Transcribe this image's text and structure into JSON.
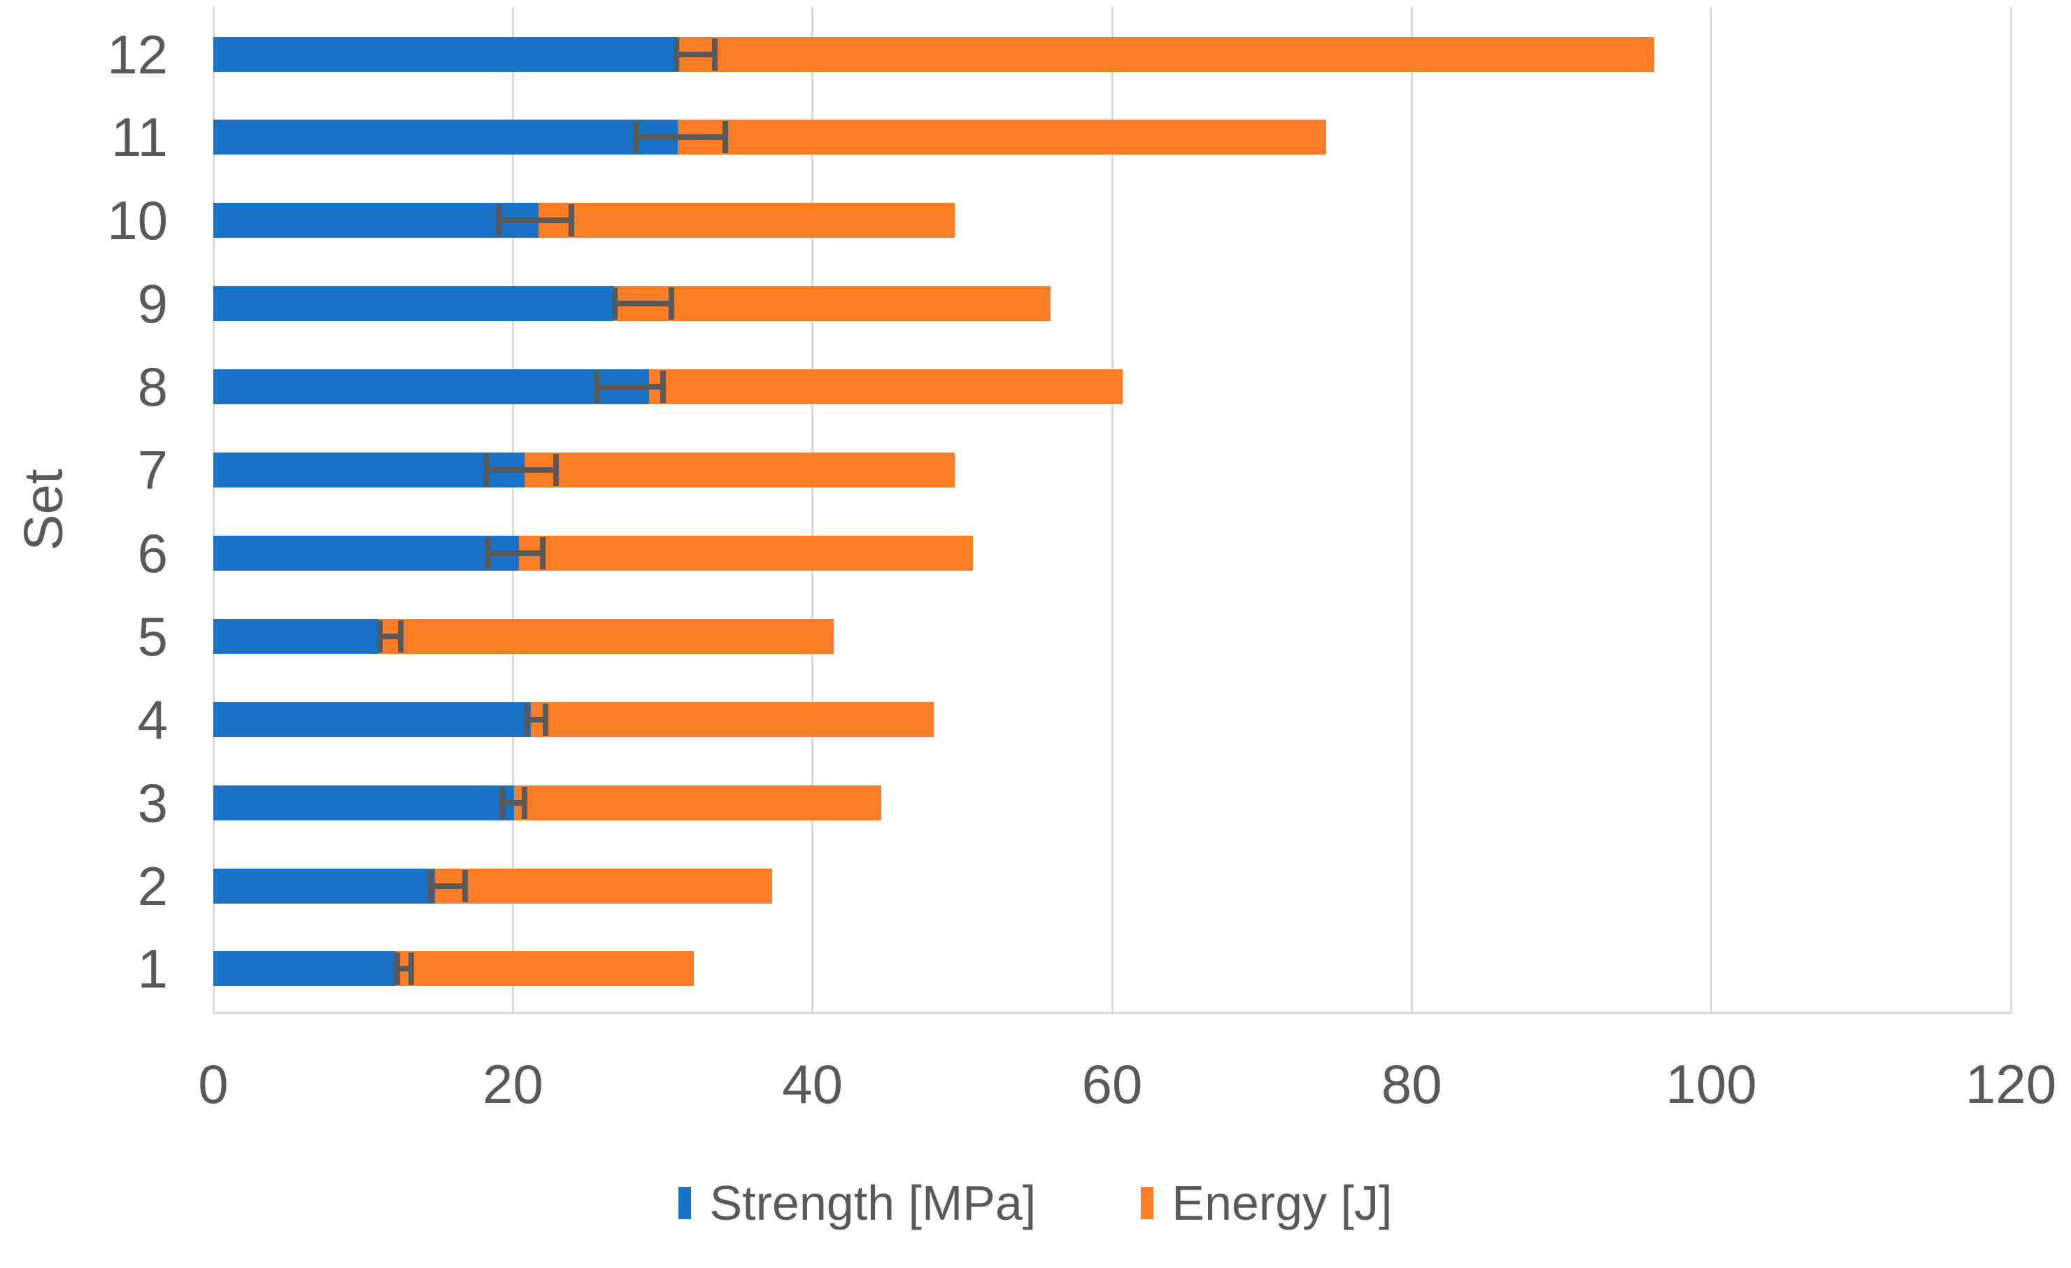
{
  "chart_data": {
    "type": "bar",
    "orientation": "horizontal",
    "stacked": true,
    "title": "",
    "xlabel": "",
    "ylabel": "Set",
    "categories": [
      "1",
      "2",
      "3",
      "4",
      "5",
      "6",
      "7",
      "8",
      "9",
      "10",
      "11",
      "12"
    ],
    "series": [
      {
        "name": "Strength [MPa]",
        "color": "#1B73C8",
        "values": [
          12.2,
          14.8,
          20.1,
          21.2,
          11.0,
          20.4,
          20.8,
          29.1,
          26.7,
          21.7,
          31.0,
          31.1
        ]
      },
      {
        "name": "Energy [J]",
        "color": "#FB7D26",
        "values": [
          19.9,
          22.5,
          24.5,
          26.9,
          30.4,
          30.3,
          28.7,
          31.6,
          29.2,
          27.8,
          43.3,
          65.1
        ]
      }
    ],
    "stack_totals": [
      32.1,
      37.3,
      44.6,
      48.1,
      41.4,
      50.7,
      49.5,
      60.7,
      55.9,
      49.5,
      74.3,
      96.2
    ],
    "error_bars": {
      "attached_to_series": "Strength [MPa]",
      "color": "#595959",
      "ranges": [
        [
          12.3,
          13.2
        ],
        [
          14.5,
          16.8
        ],
        [
          19.3,
          20.8
        ],
        [
          20.9,
          22.2
        ],
        [
          11.1,
          12.5
        ],
        [
          18.3,
          22.0
        ],
        [
          18.2,
          22.9
        ],
        [
          25.6,
          30.0
        ],
        [
          26.8,
          30.6
        ],
        [
          19.1,
          23.9
        ],
        [
          28.2,
          34.2
        ],
        [
          30.9,
          33.5
        ]
      ]
    },
    "x_ticks": [
      0,
      20,
      40,
      60,
      80,
      100,
      120
    ],
    "xlim": [
      0,
      120
    ],
    "grid": "vertical",
    "gridline_color": "#D9D9D9",
    "text_color": "#595959",
    "legend_position": "bottom",
    "background": "#FFFFFF"
  }
}
